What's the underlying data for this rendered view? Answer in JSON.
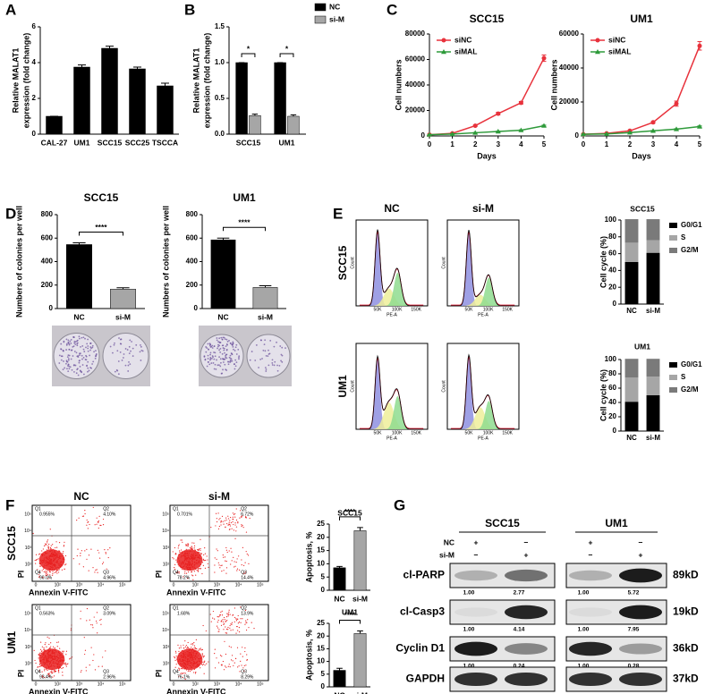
{
  "panel_labels": [
    "A",
    "B",
    "C",
    "D",
    "E",
    "F",
    "G"
  ],
  "chart_data": [
    {
      "type": "bar",
      "y_label": [
        "Relative MALAT1",
        "expression (fold change)"
      ],
      "categories": [
        "CAL-27",
        "UM1",
        "SCC15",
        "SCC25",
        "TSCCA"
      ],
      "values": [
        1,
        3.75,
        4.8,
        3.65,
        2.7
      ],
      "errors": [
        0,
        0.12,
        0.12,
        0.1,
        0.15
      ],
      "color": "#000000",
      "ylim": [
        0,
        6
      ],
      "yticks": [
        0,
        2,
        4,
        6
      ]
    },
    {
      "type": "bar",
      "y_label": [
        "Relative MALAT1",
        "expression (fold change)"
      ],
      "categories": [
        "SCC15",
        "UM1"
      ],
      "series": [
        {
          "name": "NC",
          "color": "#000000",
          "values": [
            1,
            1
          ],
          "errors": [
            0,
            0
          ]
        },
        {
          "name": "si-M",
          "color": "#a6a6a6",
          "values": [
            0.26,
            0.25
          ],
          "errors": [
            0.02,
            0.02
          ]
        }
      ],
      "significance": [
        "*",
        "*"
      ],
      "ylim": [
        0,
        1.5
      ],
      "yticks": [
        {
          "value": 0,
          "label": "0.0"
        },
        {
          "value": 0.5,
          "label": "0.5"
        },
        {
          "value": 1,
          "label": "1.0"
        },
        {
          "value": 1.5,
          "label": "1.5"
        }
      ]
    },
    {
      "type": "line",
      "title": "SCC15",
      "x_label": "Days",
      "y_label": [
        "Cell numbers"
      ],
      "x": [
        0,
        1,
        2,
        3,
        4,
        5
      ],
      "series": [
        {
          "name": "siNC",
          "color": "#e8323c",
          "marker": "circle",
          "values": [
            1000,
            2000,
            8000,
            17500,
            26000,
            61000
          ],
          "errors": [
            200,
            300,
            500,
            1000,
            1000,
            2500
          ]
        },
        {
          "name": "siMAL",
          "color": "#2e9a3a",
          "marker": "triangle",
          "values": [
            1000,
            1500,
            2500,
            3500,
            4500,
            8000
          ],
          "errors": [
            100,
            200,
            200,
            300,
            300,
            500
          ]
        }
      ],
      "xlim": [
        0,
        5
      ],
      "xticks": [
        0,
        1,
        2,
        3,
        4,
        5
      ],
      "ylim": [
        0,
        80000
      ],
      "yticks": [
        0,
        20000,
        40000,
        60000,
        80000
      ]
    },
    {
      "type": "line",
      "title": "UM1",
      "x_label": "Days",
      "y_label": [
        "Cell numbers"
      ],
      "x": [
        0,
        1,
        2,
        3,
        4,
        5
      ],
      "series": [
        {
          "name": "siNC",
          "color": "#e8323c",
          "marker": "circle",
          "values": [
            1000,
            1500,
            3000,
            8000,
            19000,
            53000
          ],
          "errors": [
            200,
            200,
            300,
            500,
            1500,
            2500
          ]
        },
        {
          "name": "siMAL",
          "color": "#2e9a3a",
          "marker": "triangle",
          "values": [
            1000,
            1200,
            2000,
            3000,
            4000,
            5500
          ],
          "errors": [
            100,
            100,
            200,
            200,
            300,
            400
          ]
        }
      ],
      "xlim": [
        0,
        5
      ],
      "xticks": [
        0,
        1,
        2,
        3,
        4,
        5
      ],
      "ylim": [
        0,
        60000
      ],
      "yticks": [
        0,
        20000,
        40000,
        60000
      ]
    },
    {
      "type": "bar",
      "title": "SCC15",
      "y_label": [
        "Numbers of colonies per well"
      ],
      "categories": [
        "NC",
        "si-M"
      ],
      "values": [
        545,
        165
      ],
      "errors": [
        15,
        12
      ],
      "colors": [
        "#000000",
        "#a6a6a6"
      ],
      "significance": "****",
      "ylim": [
        0,
        800
      ],
      "yticks": [
        0,
        200,
        400,
        600,
        800
      ]
    },
    {
      "type": "bar",
      "title": "UM1",
      "y_label": [
        "Numbers of colonies per well"
      ],
      "categories": [
        "NC",
        "si-M"
      ],
      "values": [
        585,
        180
      ],
      "errors": [
        15,
        14
      ],
      "colors": [
        "#000000",
        "#a6a6a6"
      ],
      "significance": "****",
      "ylim": [
        0,
        800
      ],
      "yticks": [
        0,
        200,
        400,
        600,
        800
      ]
    },
    {
      "type": "stacked_bar",
      "title": "SCC15",
      "y_label": [
        "Cell cycle (%)"
      ],
      "categories": [
        "NC",
        "si-M"
      ],
      "series": [
        {
          "name": "G0/G1",
          "color": "#000000",
          "values": [
            50,
            61
          ]
        },
        {
          "name": "S",
          "color": "#a6a6a6",
          "values": [
            23,
            15
          ]
        },
        {
          "name": "G2/M",
          "color": "#7a7a7a",
          "values": [
            28,
            25
          ]
        }
      ],
      "ylim": [
        0,
        100
      ],
      "yticks": [
        0,
        20,
        40,
        60,
        80,
        100
      ]
    },
    {
      "type": "stacked_bar",
      "title": "UM1",
      "y_label": [
        "Cell cycle (%)"
      ],
      "categories": [
        "NC",
        "si-M"
      ],
      "series": [
        {
          "name": "G0/G1",
          "color": "#000000",
          "values": [
            41,
            50
          ]
        },
        {
          "name": "S",
          "color": "#a6a6a6",
          "values": [
            34,
            26
          ]
        },
        {
          "name": "G2/M",
          "color": "#7a7a7a",
          "values": [
            26,
            25
          ]
        }
      ],
      "ylim": [
        0,
        100
      ],
      "yticks": [
        0,
        20,
        40,
        60,
        80,
        100
      ]
    },
    {
      "type": "bar",
      "title": "SCC15",
      "y_label": [
        "Apoptosis, %"
      ],
      "categories": [
        "NC",
        "si-M"
      ],
      "values": [
        8.5,
        22.5
      ],
      "errors": [
        0.5,
        1.2
      ],
      "colors": [
        "#000000",
        "#a6a6a6"
      ],
      "significance": "****",
      "ylim": [
        0,
        25
      ],
      "yticks": [
        0,
        5,
        10,
        15,
        20,
        25
      ]
    },
    {
      "type": "bar",
      "title": "UM1",
      "y_label": [
        "Apoptosis, %"
      ],
      "categories": [
        "NC",
        "si-M"
      ],
      "values": [
        6.5,
        21
      ],
      "errors": [
        0.8,
        1.0
      ],
      "colors": [
        "#000000",
        "#a6a6a6"
      ],
      "significance": "****",
      "ylim": [
        0,
        25
      ],
      "yticks": [
        0,
        5,
        10,
        15,
        20,
        25
      ]
    }
  ],
  "cell_cycle_histograms": {
    "columns": [
      "NC",
      "si-M"
    ],
    "rows": [
      "SCC15",
      "UM1"
    ],
    "x_label": "PE-A",
    "y_label": "Count",
    "x_ticks": [
      "50K",
      "100K",
      "150K"
    ]
  },
  "apoptosis_flow": {
    "columns": [
      "NC",
      "si-M"
    ],
    "rows": [
      "SCC15",
      "UM1"
    ],
    "x_label": "Annexin V-FITC",
    "y_label": "PI",
    "x_ticks": [
      "0",
      "10²",
      "10³",
      "10⁴",
      "10⁵"
    ],
    "y_ticks": [
      "10²",
      "10³",
      "10⁴",
      "10⁵"
    ],
    "quadrant_names": [
      "Q1",
      "Q2",
      "Q3",
      "Q4"
    ],
    "plots": [
      [
        [
          "0.955%",
          "4.10%",
          "4.96%",
          "90.0%"
        ],
        [
          "0.701%",
          "6.72%",
          "14.4%",
          "78.2%"
        ]
      ],
      [
        [
          "0.563%",
          "3.09%",
          "2.96%",
          "93.4%"
        ],
        [
          "1.68%",
          "13.9%",
          "8.29%",
          "76.1%"
        ]
      ]
    ]
  },
  "western": {
    "cell_lines": [
      "SCC15",
      "UM1"
    ],
    "conditions": [
      {
        "name": "NC",
        "signs": [
          "+",
          "−",
          "+",
          "−"
        ]
      },
      {
        "name": "si-M",
        "signs": [
          "−",
          "+",
          "−",
          "+"
        ]
      }
    ],
    "blots": [
      {
        "name": "cl-PARP",
        "size": "89kD",
        "ratios": [
          "1.00",
          "2.77",
          "1.00",
          "5.72"
        ]
      },
      {
        "name": "cl-Casp3",
        "size": "19kD",
        "ratios": [
          "1.00",
          "4.14",
          "1.00",
          "7.95"
        ]
      },
      {
        "name": "Cyclin D1",
        "size": "36kD",
        "ratios": [
          "1.00",
          "0.24",
          "1.00",
          "0.28"
        ]
      },
      {
        "name": "GAPDH",
        "size": "37kD"
      }
    ]
  }
}
